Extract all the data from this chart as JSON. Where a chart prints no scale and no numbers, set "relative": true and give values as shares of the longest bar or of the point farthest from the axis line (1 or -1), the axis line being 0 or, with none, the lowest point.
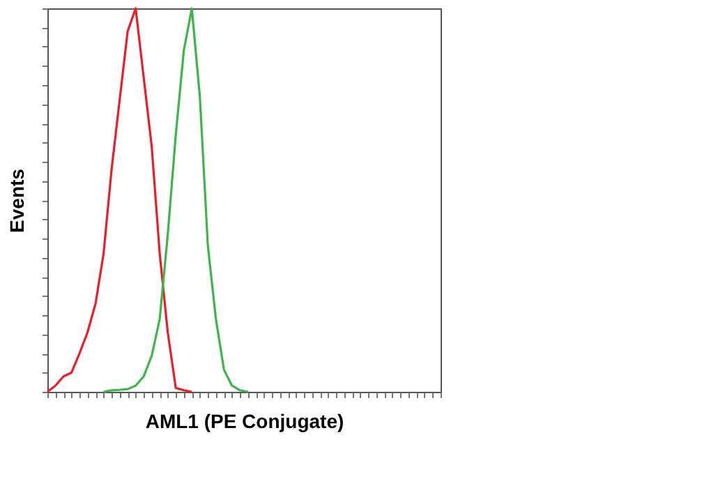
{
  "chart_data": {
    "type": "line",
    "relative": true,
    "xlabel": "AML1 (PE Conjugate)",
    "ylabel": "Events",
    "tick_labels": false,
    "grid": false,
    "legend": false,
    "marker": "none",
    "line_style": "solid",
    "categories": [
      null,
      null,
      null,
      null,
      null,
      null,
      null,
      null,
      null,
      null,
      null,
      null,
      null,
      null,
      null,
      null,
      null,
      null,
      null,
      null,
      null,
      null,
      null,
      null,
      null,
      null,
      null,
      null,
      null,
      null,
      null,
      null,
      null,
      null,
      null,
      null,
      null,
      null,
      null,
      null,
      null,
      null,
      null,
      null,
      null,
      null,
      null,
      null,
      null,
      null
    ],
    "series": [
      {
        "color": "#ee1c25",
        "values": [
          0,
          0.016,
          0.04,
          0.05,
          0.1,
          0.155,
          0.23,
          0.36,
          0.58,
          0.76,
          0.94,
          1,
          0.82,
          0.64,
          0.36,
          0.155,
          0.01,
          0.004,
          0,
          null,
          null,
          null,
          null,
          null,
          null,
          null,
          null,
          null,
          null,
          null,
          null,
          null,
          null,
          null,
          null,
          null,
          null,
          null,
          null,
          null,
          null,
          null,
          null,
          null,
          null,
          null,
          null,
          null,
          null,
          null
        ]
      },
      {
        "color": "#3db54a",
        "values": [
          null,
          null,
          null,
          null,
          null,
          null,
          null,
          0,
          0.004,
          0.005,
          0.007,
          0.016,
          0.04,
          0.094,
          0.19,
          0.41,
          0.67,
          0.89,
          1,
          0.77,
          0.38,
          0.19,
          0.058,
          0.016,
          0.004,
          0,
          null,
          null,
          null,
          null,
          null,
          null,
          null,
          null,
          null,
          null,
          null,
          null,
          null,
          null,
          null,
          null,
          null,
          null,
          null,
          null,
          null,
          null,
          null,
          null
        ]
      }
    ]
  }
}
